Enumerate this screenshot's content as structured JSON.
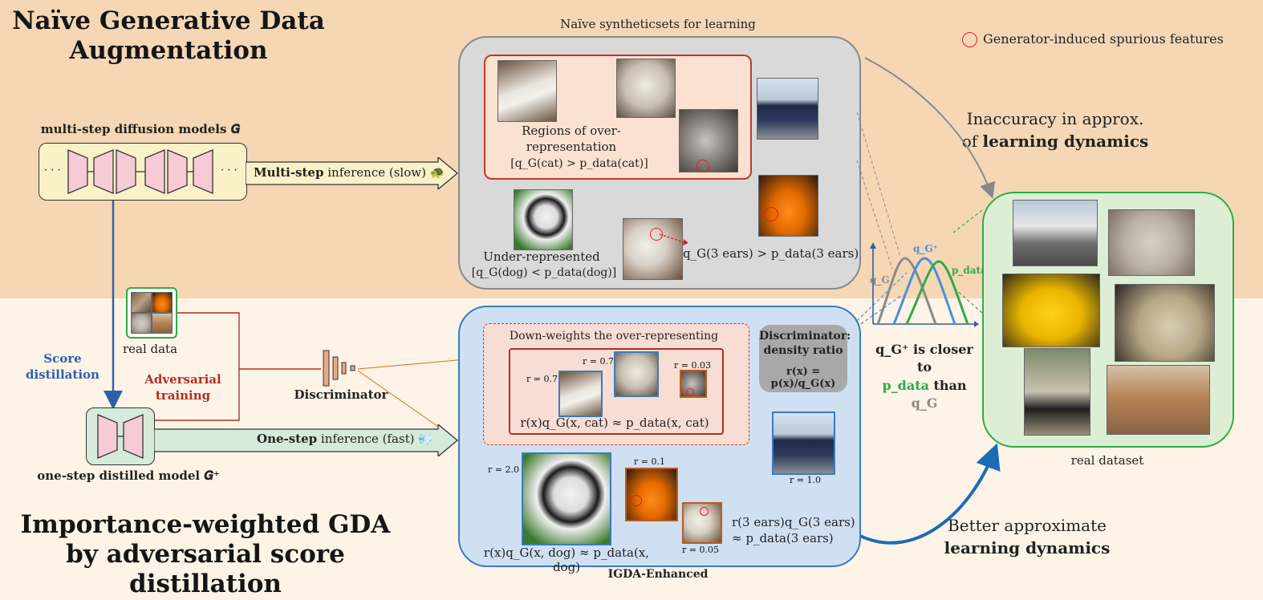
{
  "titles": {
    "top_line1": "Naïve Generative Data",
    "top_line2": "Augmentation",
    "bottom_line1": "Importance-weighted GDA",
    "bottom_line2": "by adversarial score distillation"
  },
  "legend": {
    "spurious": "Generator-induced spurious features"
  },
  "top": {
    "diffusion_label": "multi-step diffusion models 𝑮",
    "ellipsis": "· · ·",
    "multistep_bold": "Multi-step",
    "multistep_rest": " inference (slow)",
    "turtle": "🐢",
    "syntheticsets_label": "Naïve syntheticsets for learning",
    "overrep_text": "Regions of over-representation",
    "overrep_formula": "[q_G(cat) > p_data(cat)]",
    "underrep_text": "Under-represented",
    "underrep_formula": "[q_G(dog) < p_data(dog)]",
    "ears_formula": "q_G(3 ears) > p_data(3 ears)",
    "inaccuracy_line1": "Inaccuracy in approx.",
    "inaccuracy_line2_plain": "of ",
    "inaccuracy_line2_bold": "learning dynamics"
  },
  "middle": {
    "real_data_label": "real data",
    "score_distillation": "Score distillation",
    "adversarial_training": "Adversarial training",
    "discriminator": "Discriminator",
    "onestep_model": "one-step distilled model 𝑮⁺",
    "onestep_bold": "One-step",
    "onestep_rest": " inference (fast)",
    "wind": "💨"
  },
  "igda": {
    "downweights": "Down-weights the over-representing",
    "disc_title1": "Discriminator:",
    "disc_title2": "density ratio",
    "disc_formula": "r(x) = p(x)/q_G(x)",
    "cat_formula": "r(x)q_G(x, cat) ≈ p_data(x, cat)",
    "dog_formula": "r(x)q_G(x, dog) ≈ p_data(x, dog)",
    "ears_formula1": "r(3 ears)q_G(3 ears)",
    "ears_formula2": "≈ p_data(3 ears)",
    "r_cat1": "r = 0.7",
    "r_cat2": "r = 0.7",
    "r_cat3": "r = 0.03",
    "r_dog": "r = 2.0",
    "r_car": "r = 0.1",
    "r_puppy": "r = 0.05",
    "r_truck": "r = 1.0",
    "caption": "IGDA-Enhanced"
  },
  "right": {
    "plot_qg": "q_G",
    "plot_qgplus": "q_G⁺",
    "plot_pdata": "p_data",
    "closer_line1": "q_G⁺ is closer to",
    "closer_line2_p": "p_data",
    "closer_line2_than": " than ",
    "closer_line2_q": "q_G",
    "real_dataset": "real dataset",
    "better_line1": "Better approximate",
    "better_line2": "learning dynamics"
  },
  "colors": {
    "top_band": "#f5d7b5",
    "bottom_band": "#fdf3e6",
    "gray_box": "#d9d9d9",
    "blue_box": "#cfe0f3",
    "green_box": "#dcefd4",
    "red_accent": "#c0392b",
    "blue_accent": "#2f6db5",
    "green_accent": "#2eaa4a",
    "qg_gray": "#8a8a8a",
    "qgplus_blue": "#4a90d9"
  }
}
